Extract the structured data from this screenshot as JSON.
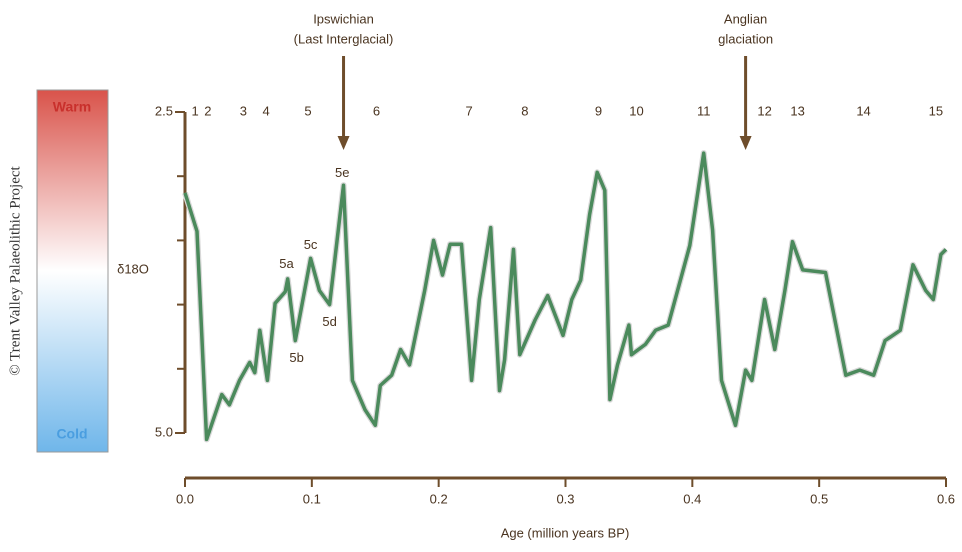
{
  "chart_data": {
    "type": "line",
    "y_label": "δ18O",
    "x_label": "Age (million years BP)",
    "credit": "© Trent Valley Palaeolithic Project",
    "scale_bar": {
      "top": "Warm",
      "bottom": "Cold"
    },
    "color": "#4b8a5c",
    "axis_color": "#6e4d2b",
    "xlim": [
      0,
      0.6
    ],
    "xticks": [
      {
        "value": 0,
        "label": "0.0"
      },
      0.1,
      0.2,
      0.3,
      0.4,
      0.5,
      0.6
    ],
    "ylim": [
      2.5,
      5
    ],
    "y_inverted": true,
    "yticks": [
      2.5,
      {
        "value": 5,
        "label": "5.0"
      }
    ],
    "yminor_ticks": [
      3,
      3.5,
      4,
      4.5
    ],
    "x": [
      0,
      0.0095,
      0.017,
      0.029,
      0.035,
      0.043,
      0.051,
      0.055,
      0.059,
      0.065,
      0.071,
      0.079,
      0.081,
      0.087,
      0.099,
      0.106,
      0.114,
      0.125,
      0.132,
      0.142,
      0.15,
      0.154,
      0.163,
      0.17,
      0.177,
      0.189,
      0.196,
      0.203,
      0.209,
      0.218,
      0.226,
      0.232,
      0.241,
      0.248,
      0.252,
      0.259,
      0.264,
      0.276,
      0.286,
      0.298,
      0.305,
      0.312,
      0.319,
      0.325,
      0.331,
      0.335,
      0.341,
      0.35,
      0.352,
      0.363,
      0.371,
      0.381,
      0.398,
      0.409,
      0.416,
      0.423,
      0.434,
      0.442,
      0.447,
      0.457,
      0.465,
      0.473,
      0.479,
      0.487,
      0.505,
      0.521,
      0.532,
      0.543,
      0.552,
      0.564,
      0.574,
      0.584,
      0.59,
      0.596,
      0.6
    ],
    "values": [
      3.13,
      3.43,
      5.05,
      4.7,
      4.78,
      4.59,
      4.45,
      4.53,
      4.2,
      4.59,
      3.99,
      3.9,
      3.8,
      4.28,
      3.64,
      3.89,
      4.0,
      3.07,
      4.59,
      4.82,
      4.94,
      4.63,
      4.55,
      4.35,
      4.47,
      3.89,
      3.5,
      3.77,
      3.53,
      3.53,
      4.59,
      3.96,
      3.4,
      4.67,
      4.43,
      3.57,
      4.39,
      4.12,
      3.93,
      4.24,
      3.96,
      3.81,
      3.3,
      2.97,
      3.11,
      4.74,
      4.47,
      4.16,
      4.39,
      4.31,
      4.2,
      4.16,
      3.54,
      2.82,
      3.42,
      4.59,
      4.94,
      4.51,
      4.59,
      3.96,
      4.35,
      3.89,
      3.51,
      3.73,
      3.75,
      4.55,
      4.51,
      4.55,
      4.28,
      4.2,
      3.69,
      3.89,
      3.96,
      3.61,
      3.57
    ],
    "stages": [
      {
        "label": "1",
        "x": 0.008
      },
      {
        "label": "2",
        "x": 0.018
      },
      {
        "label": "3",
        "x": 0.046
      },
      {
        "label": "4",
        "x": 0.064
      },
      {
        "label": "5",
        "x": 0.097
      },
      {
        "label": "6",
        "x": 0.151
      },
      {
        "label": "7",
        "x": 0.224
      },
      {
        "label": "8",
        "x": 0.268
      },
      {
        "label": "9",
        "x": 0.326
      },
      {
        "label": "10",
        "x": 0.356
      },
      {
        "label": "11",
        "x": 0.409
      },
      {
        "label": "12",
        "x": 0.457
      },
      {
        "label": "13",
        "x": 0.483
      },
      {
        "label": "14",
        "x": 0.535
      },
      {
        "label": "15",
        "x": 0.592
      }
    ],
    "substages": [
      {
        "label": "5e",
        "x": 0.124,
        "y": 2.98
      },
      {
        "label": "5c",
        "x": 0.099,
        "y": 3.54
      },
      {
        "label": "5a",
        "x": 0.08,
        "y": 3.69
      },
      {
        "label": "5b",
        "x": 0.088,
        "y": 4.42
      },
      {
        "label": "5d",
        "x": 0.114,
        "y": 4.14
      }
    ],
    "annotations": [
      {
        "lines": [
          "Ipswichian",
          "(Last Interglacial)"
        ],
        "x": 0.125
      },
      {
        "lines": [
          "Anglian",
          "glaciation"
        ],
        "x": 0.442
      }
    ]
  }
}
